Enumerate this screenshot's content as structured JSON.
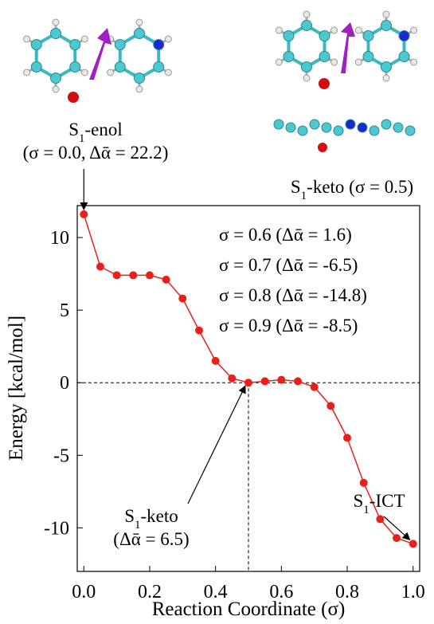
{
  "chart_data": {
    "type": "line",
    "x_label": "Reaction Coordinate  (σ)",
    "y_label": "Energy  [kcal/mol]",
    "x": [
      0.0,
      0.05,
      0.1,
      0.15,
      0.2,
      0.25,
      0.3,
      0.35,
      0.4,
      0.45,
      0.5,
      0.55,
      0.6,
      0.65,
      0.7,
      0.75,
      0.8,
      0.85,
      0.9,
      0.95,
      1.0
    ],
    "series": [
      {
        "color": "#e8201c",
        "values": [
          11.6,
          8.0,
          7.4,
          7.4,
          7.4,
          7.1,
          5.8,
          3.6,
          1.5,
          0.3,
          0.0,
          0.1,
          0.2,
          0.1,
          -0.3,
          -1.6,
          -3.8,
          -6.9,
          -9.4,
          -10.7,
          -11.1
        ]
      }
    ],
    "xlim": [
      -0.02,
      1.02
    ],
    "ylim": [
      -13,
      12.2
    ],
    "xticks": [
      {
        "value": 0,
        "label": "0.0"
      },
      0.2,
      0.4,
      0.6,
      0.8,
      {
        "value": 1,
        "label": "1.0"
      }
    ],
    "yticks": [
      -10,
      -5,
      0,
      5,
      10
    ],
    "hline": 0,
    "vline": 0.5,
    "notes": [
      "σ = 0.6  (Δᾱ = 1.6)",
      "σ = 0.7  (Δᾱ = -6.5)",
      "σ = 0.8  (Δᾱ = -14.8)",
      "σ = 0.9   (Δᾱ = -8.5)"
    ],
    "annotations": [
      {
        "lines": [
          [
            {
              "text": "S"
            },
            {
              "text": "1",
              "sub": true
            },
            {
              "text": "-enol"
            }
          ],
          [
            {
              "text": "(σ = 0.0, Δᾱ = 22.2)"
            }
          ]
        ]
      },
      {
        "lines": [
          [
            {
              "text": "S"
            },
            {
              "text": "1",
              "sub": true
            },
            {
              "text": "-keto (σ = 0.5)"
            }
          ]
        ]
      },
      {
        "lines": [
          [
            {
              "text": "S"
            },
            {
              "text": "1",
              "sub": true
            },
            {
              "text": "-keto"
            }
          ],
          [
            {
              "text": "(Δᾱ = 6.5)"
            }
          ]
        ]
      },
      {
        "lines": [
          [
            {
              "text": "S"
            },
            {
              "text": "1",
              "sub": true
            },
            {
              "text": "-ICT"
            }
          ]
        ]
      }
    ]
  }
}
